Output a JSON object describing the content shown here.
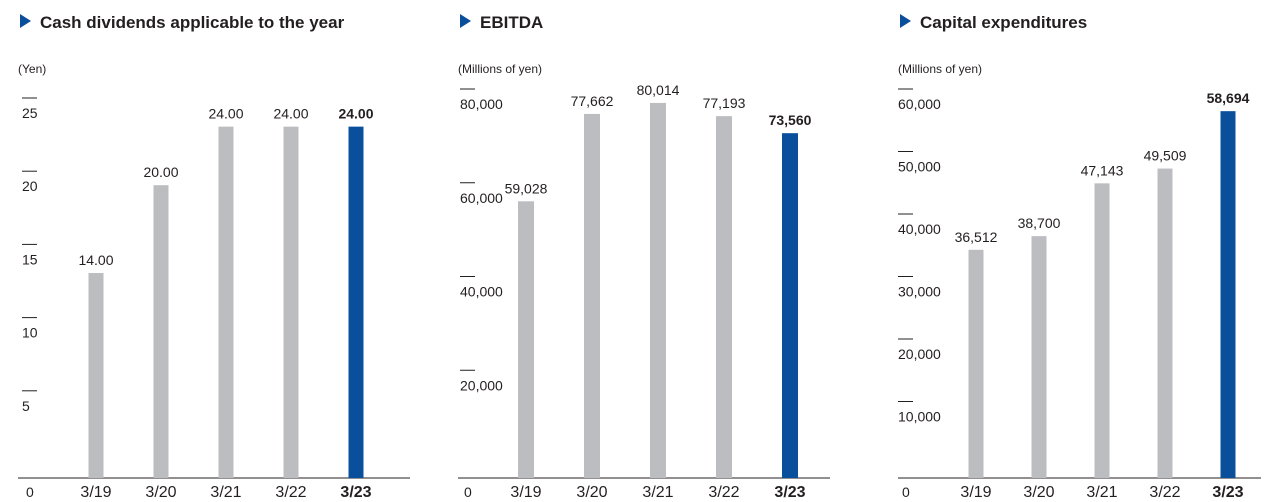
{
  "colors": {
    "bar_default": "#bcbdc0",
    "bar_highlight": "#0a4f9c",
    "title_marker": "#0a4f9c",
    "axis": "#231f20",
    "text": "#231f20"
  },
  "chart_data": [
    {
      "type": "bar",
      "title": "Cash dividends applicable to the year",
      "unit_label": "(Yen)",
      "categories": [
        "3/19",
        "3/20",
        "3/21",
        "3/22",
        "3/23"
      ],
      "values": [
        14,
        20,
        24,
        24,
        24
      ],
      "value_labels": [
        "14.00",
        "20.00",
        "24.00",
        "24.00",
        "24.00"
      ],
      "highlight_index": 4,
      "ylim": [
        0,
        25
      ],
      "yticks": [
        {
          "value": 5,
          "label": "5"
        },
        {
          "value": 10,
          "label": "10"
        },
        {
          "value": 15,
          "label": "15"
        },
        {
          "value": 20,
          "label": "20"
        },
        {
          "value": 25,
          "label": "25"
        }
      ],
      "zero_label": "0",
      "grid": false
    },
    {
      "type": "bar",
      "title": "EBITDA",
      "unit_label": "(Millions of yen)",
      "categories": [
        "3/19",
        "3/20",
        "3/21",
        "3/22",
        "3/23"
      ],
      "values": [
        59028,
        77662,
        80014,
        77193,
        73560
      ],
      "value_labels": [
        "59,028",
        "77,662",
        "80,014",
        "77,193",
        "73,560"
      ],
      "highlight_index": 4,
      "ylim": [
        0,
        80000
      ],
      "yticks": [
        {
          "value": 20000,
          "label": "20,000"
        },
        {
          "value": 40000,
          "label": "40,000"
        },
        {
          "value": 60000,
          "label": "60,000"
        },
        {
          "value": 80000,
          "label": "80,000"
        }
      ],
      "zero_label": "0",
      "grid": false
    },
    {
      "type": "bar",
      "title": "Capital expenditures",
      "unit_label": "(Millions of yen)",
      "categories": [
        "3/19",
        "3/20",
        "3/21",
        "3/22",
        "3/23"
      ],
      "values": [
        36512,
        38700,
        47143,
        49509,
        58694
      ],
      "value_labels": [
        "36,512",
        "38,700",
        "47,143",
        "49,509",
        "58,694"
      ],
      "highlight_index": 4,
      "ylim": [
        0,
        60000
      ],
      "yticks": [
        {
          "value": 10000,
          "label": "10,000"
        },
        {
          "value": 20000,
          "label": "20,000"
        },
        {
          "value": 30000,
          "label": "30,000"
        },
        {
          "value": 40000,
          "label": "40,000"
        },
        {
          "value": 50000,
          "label": "50,000"
        },
        {
          "value": 60000,
          "label": "60,000"
        }
      ],
      "zero_label": "0",
      "grid": false
    }
  ]
}
